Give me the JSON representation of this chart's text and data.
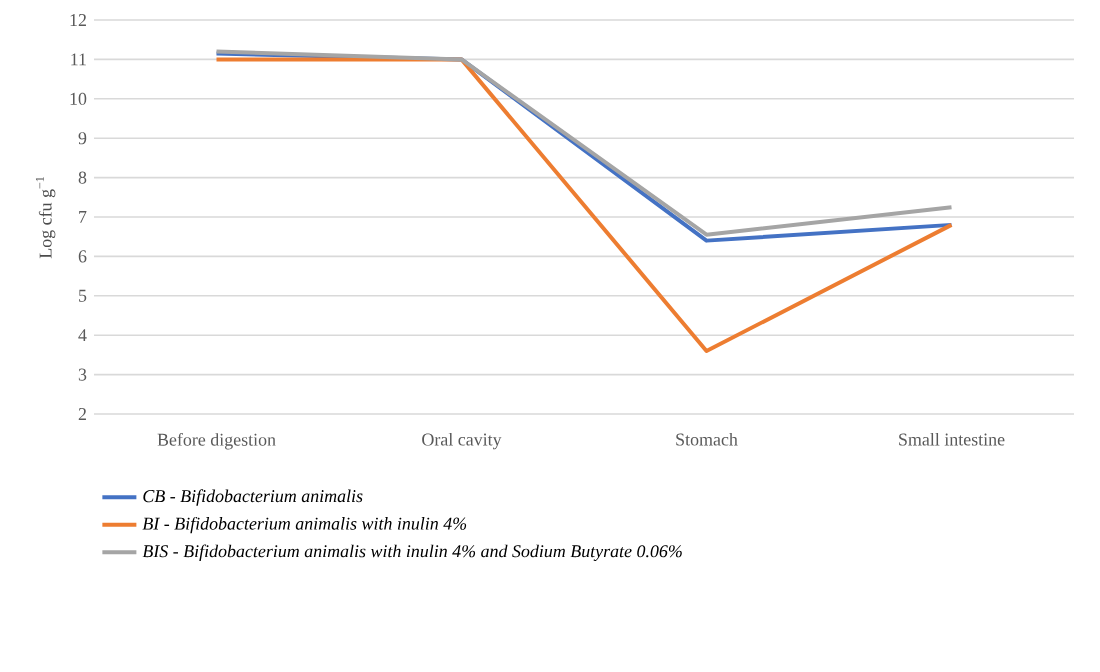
{
  "chart_data": {
    "type": "line",
    "ylabel": "Log cfu g$^{−1}$",
    "categories": [
      "Before digestion",
      "Oral cavity",
      "Stomach",
      "Small intestine"
    ],
    "series": [
      {
        "name": "CB - Bifidobacterium animalis",
        "color": "#4472c4",
        "values": [
          11.15,
          11.0,
          6.4,
          6.8
        ]
      },
      {
        "name": "BI - Bifidobacterium animalis with inulin 4%",
        "color": "#ed7d31",
        "values": [
          11.0,
          11.0,
          3.6,
          6.8
        ]
      },
      {
        "name": "BIS - Bifidobacterium animalis with inulin 4% and Sodium Butyrate 0.06%",
        "color": "#a5a5a5",
        "values": [
          11.2,
          11.0,
          6.55,
          7.25
        ]
      }
    ],
    "ylim": [
      2,
      12
    ],
    "yticks": [
      2,
      3,
      4,
      5,
      6,
      7,
      8,
      9,
      10,
      11,
      12
    ],
    "grid": "y",
    "legend": "bottom",
    "marker": "none",
    "line_style": "solid"
  }
}
